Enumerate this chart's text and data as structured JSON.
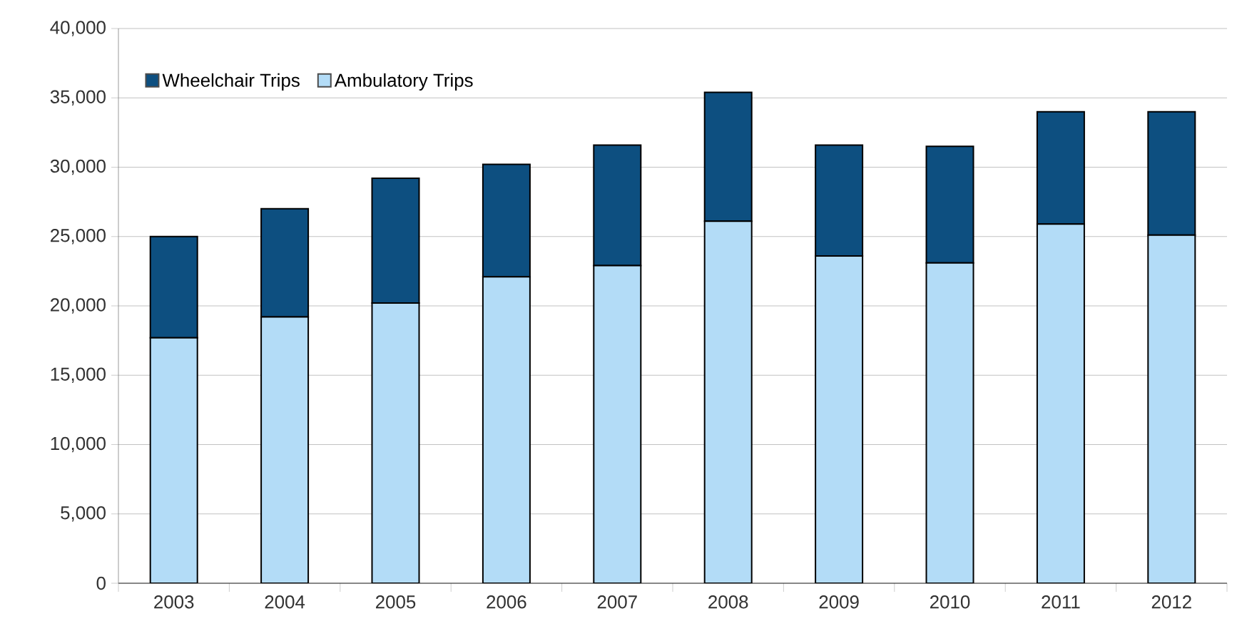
{
  "chart_data": {
    "type": "bar",
    "stacked": true,
    "categories": [
      "2003",
      "2004",
      "2005",
      "2006",
      "2007",
      "2008",
      "2009",
      "2010",
      "2011",
      "2012"
    ],
    "series": [
      {
        "name": "Ambulatory Trips",
        "color": "#b3dcf7",
        "values": [
          17700,
          19200,
          20200,
          22100,
          22900,
          26100,
          23600,
          23100,
          25900,
          25100
        ]
      },
      {
        "name": "Wheelchair Trips",
        "color": "#0d4f80",
        "values": [
          7300,
          7800,
          9000,
          8100,
          8700,
          9300,
          8000,
          8400,
          8100,
          8900
        ]
      }
    ],
    "ylim": [
      0,
      40000
    ],
    "yticks": [
      {
        "value": 0,
        "label": "0"
      },
      {
        "value": 5000,
        "label": "5,000"
      },
      {
        "value": 10000,
        "label": "10,000"
      },
      {
        "value": 15000,
        "label": "15,000"
      },
      {
        "value": 20000,
        "label": "20,000"
      },
      {
        "value": 25000,
        "label": "25,000"
      },
      {
        "value": 30000,
        "label": "30,000"
      },
      {
        "value": 35000,
        "label": "35,000"
      },
      {
        "value": 40000,
        "label": "40,000"
      }
    ],
    "grid": "y",
    "legend": "top left"
  }
}
